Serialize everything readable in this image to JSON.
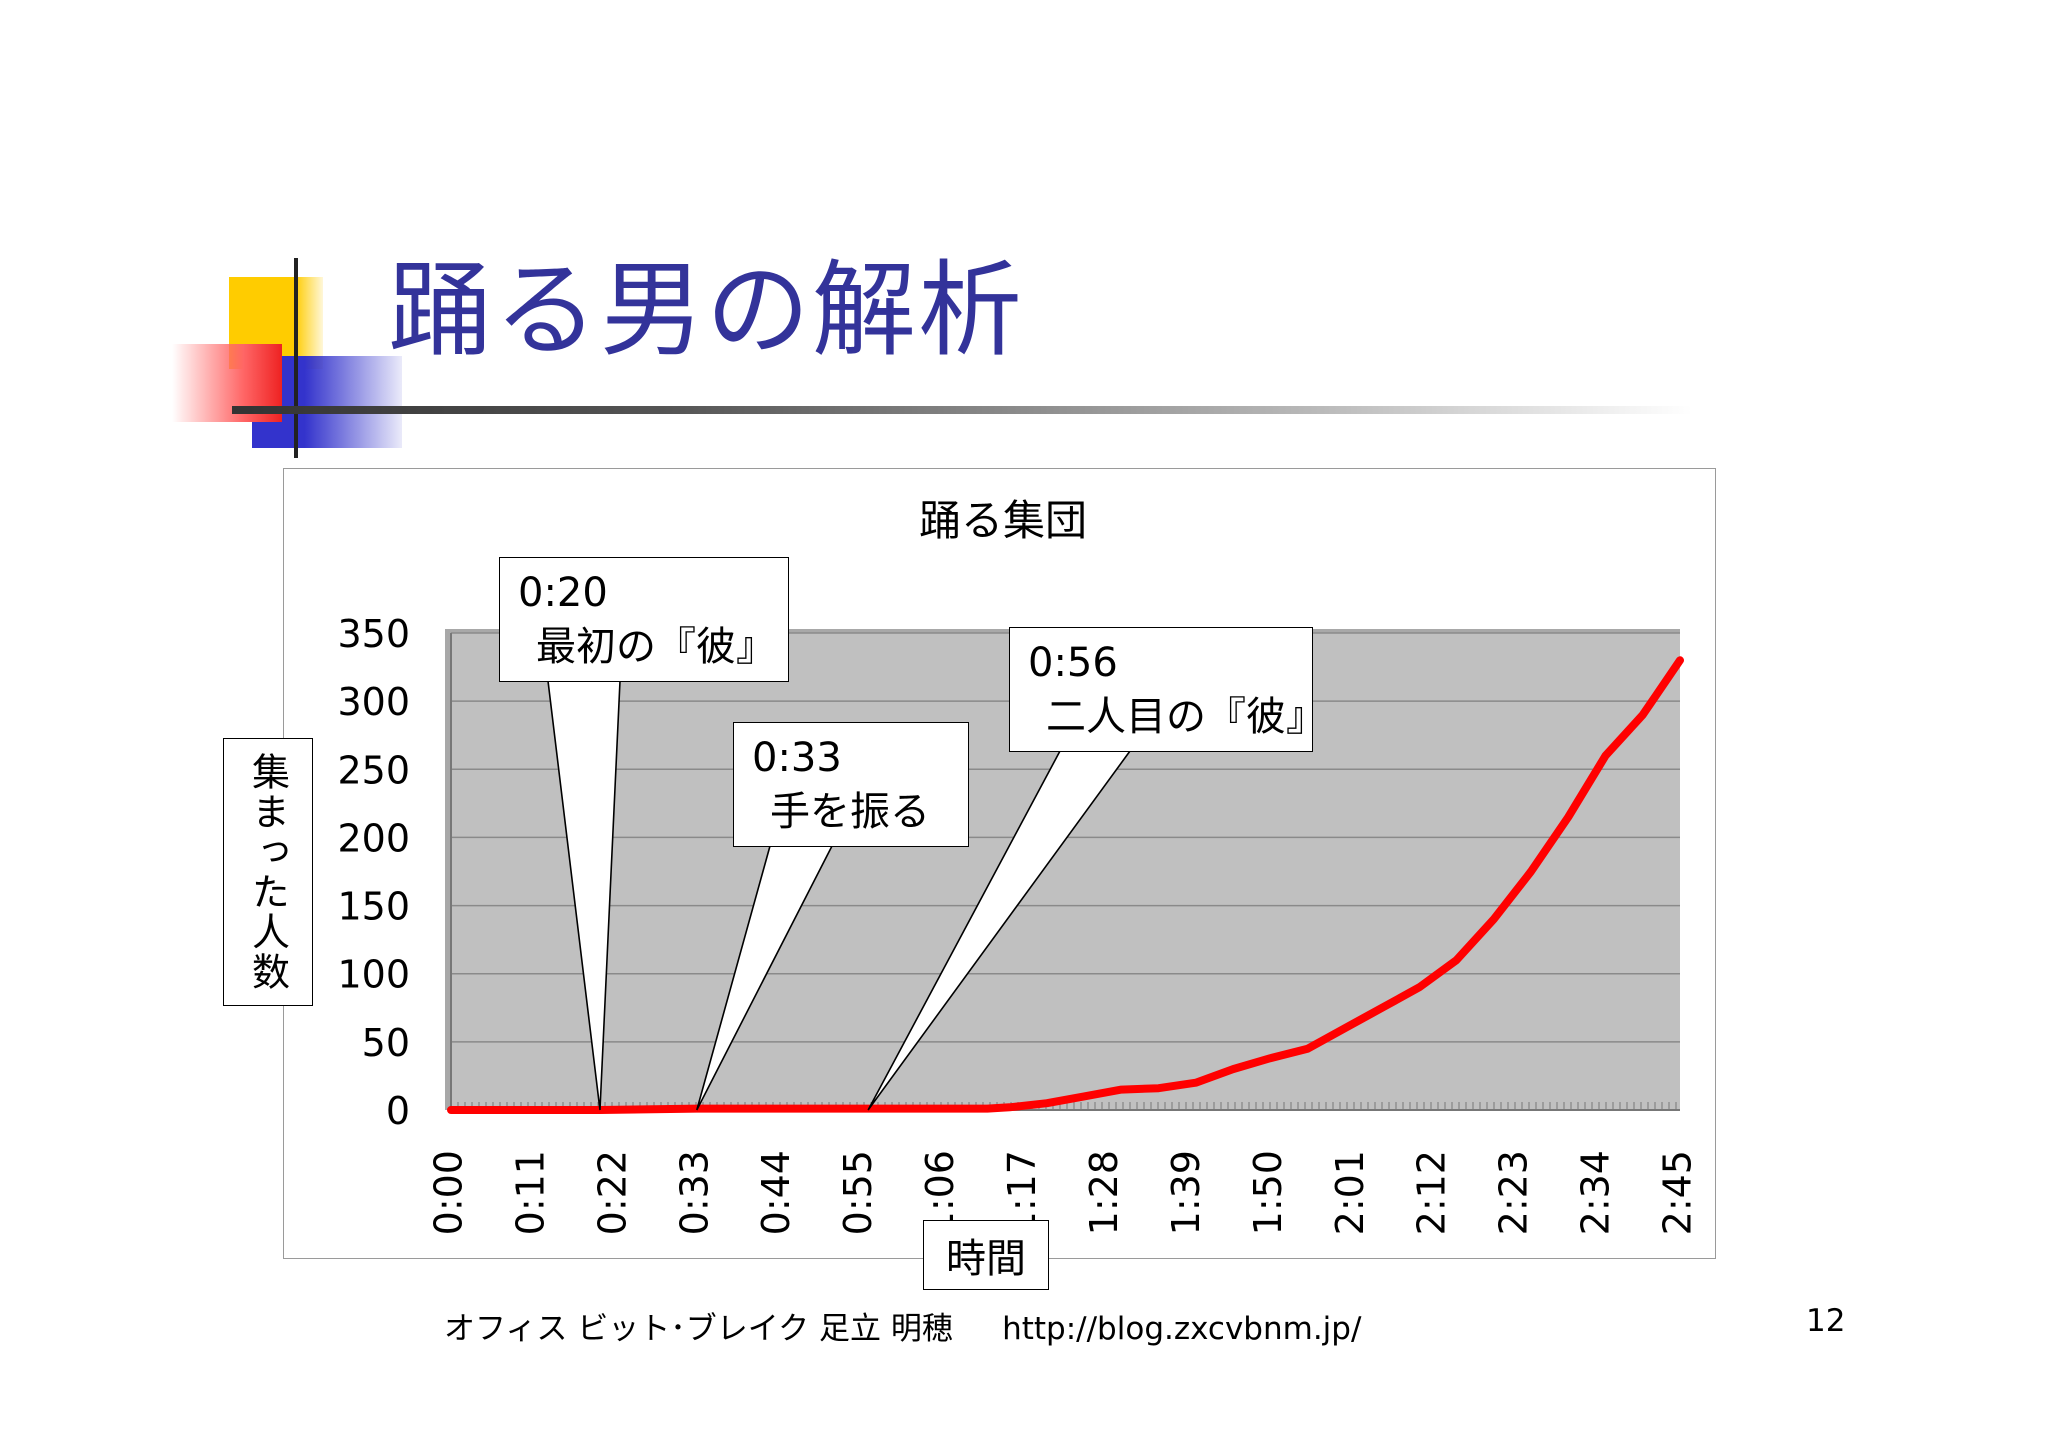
{
  "slide": {
    "title": "踊る男の解析",
    "footer": "オフィス ビット･ブレイク 足立 明穂     http://blog.zxcvbnm.jp/",
    "page_number": "12"
  },
  "colors": {
    "title": "#33339a",
    "plot_area": "#c0c0c0",
    "series_line": "#ff0000",
    "deco_yellow": "#ffcc00",
    "deco_blue": "#3333cc",
    "deco_red": "#ee2222"
  },
  "chart_data": {
    "type": "line",
    "title": "踊る集団",
    "xlabel": "時間",
    "ylabel": "集まった人数",
    "ylim": [
      0,
      350
    ],
    "yticks": [
      0,
      50,
      100,
      150,
      200,
      250,
      300,
      350
    ],
    "xlim": [
      "0:00",
      "2:45"
    ],
    "xtick_labels": [
      "0:00",
      "0:11",
      "0:22",
      "0:33",
      "0:44",
      "0:55",
      "1:06",
      "1:17",
      "1:28",
      "1:39",
      "1:50",
      "2:01",
      "2:12",
      "2:23",
      "2:34",
      "2:45"
    ],
    "grid": true,
    "legend": "none",
    "series": [
      {
        "color": "#ff0000",
        "points": [
          [
            "0:00",
            0
          ],
          [
            "0:20",
            0
          ],
          [
            "0:33",
            1
          ],
          [
            "0:56",
            1
          ],
          [
            "1:12",
            1
          ],
          [
            "1:15",
            2
          ],
          [
            "1:20",
            5
          ],
          [
            "1:25",
            10
          ],
          [
            "1:30",
            15
          ],
          [
            "1:35",
            16
          ],
          [
            "1:40",
            20
          ],
          [
            "1:45",
            30
          ],
          [
            "1:50",
            38
          ],
          [
            "1:55",
            45
          ],
          [
            "2:00",
            60
          ],
          [
            "2:05",
            75
          ],
          [
            "2:10",
            90
          ],
          [
            "2:15",
            110
          ],
          [
            "2:20",
            140
          ],
          [
            "2:25",
            175
          ],
          [
            "2:30",
            215
          ],
          [
            "2:35",
            260
          ],
          [
            "2:40",
            290
          ],
          [
            "2:45",
            330
          ]
        ]
      }
    ],
    "annotations": [
      {
        "lines": [
          "0:20",
          "最初の『彼』"
        ],
        "x": "0:20",
        "y": 0
      },
      {
        "lines": [
          "0:33",
          "手を振る"
        ],
        "x": "0:33",
        "y": 0
      },
      {
        "lines": [
          "0:56",
          "二人目の『彼』"
        ],
        "x": "0:56",
        "y": 0
      }
    ]
  }
}
